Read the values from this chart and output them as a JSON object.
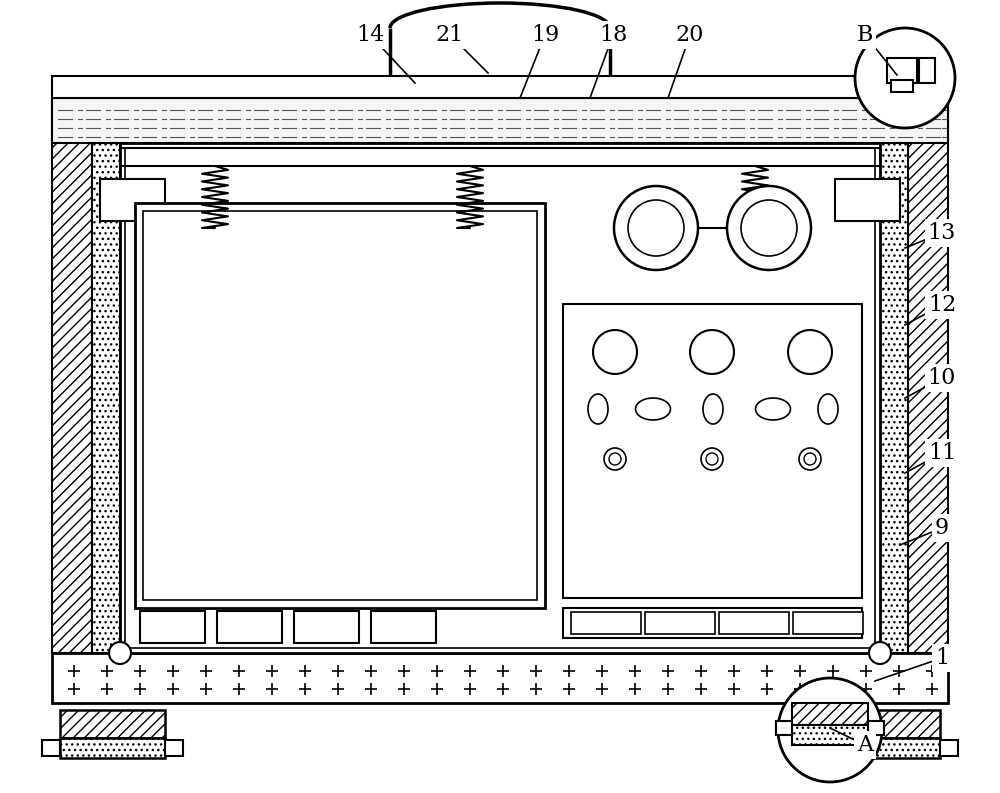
{
  "bg_color": "#ffffff",
  "figsize": [
    10.0,
    7.93
  ],
  "dpi": 100,
  "annotations": [
    [
      "14",
      370,
      758,
      415,
      710
    ],
    [
      "21",
      450,
      758,
      488,
      720
    ],
    [
      "19",
      545,
      758,
      520,
      695
    ],
    [
      "18",
      613,
      758,
      590,
      695
    ],
    [
      "20",
      690,
      758,
      668,
      695
    ],
    [
      "B",
      865,
      758,
      897,
      718
    ],
    [
      "13",
      942,
      560,
      905,
      545
    ],
    [
      "12",
      942,
      488,
      905,
      468
    ],
    [
      "10",
      942,
      415,
      905,
      395
    ],
    [
      "11",
      942,
      340,
      905,
      320
    ],
    [
      "9",
      942,
      265,
      900,
      248
    ],
    [
      "1",
      942,
      135,
      875,
      112
    ],
    [
      "A",
      865,
      48,
      830,
      65
    ]
  ]
}
